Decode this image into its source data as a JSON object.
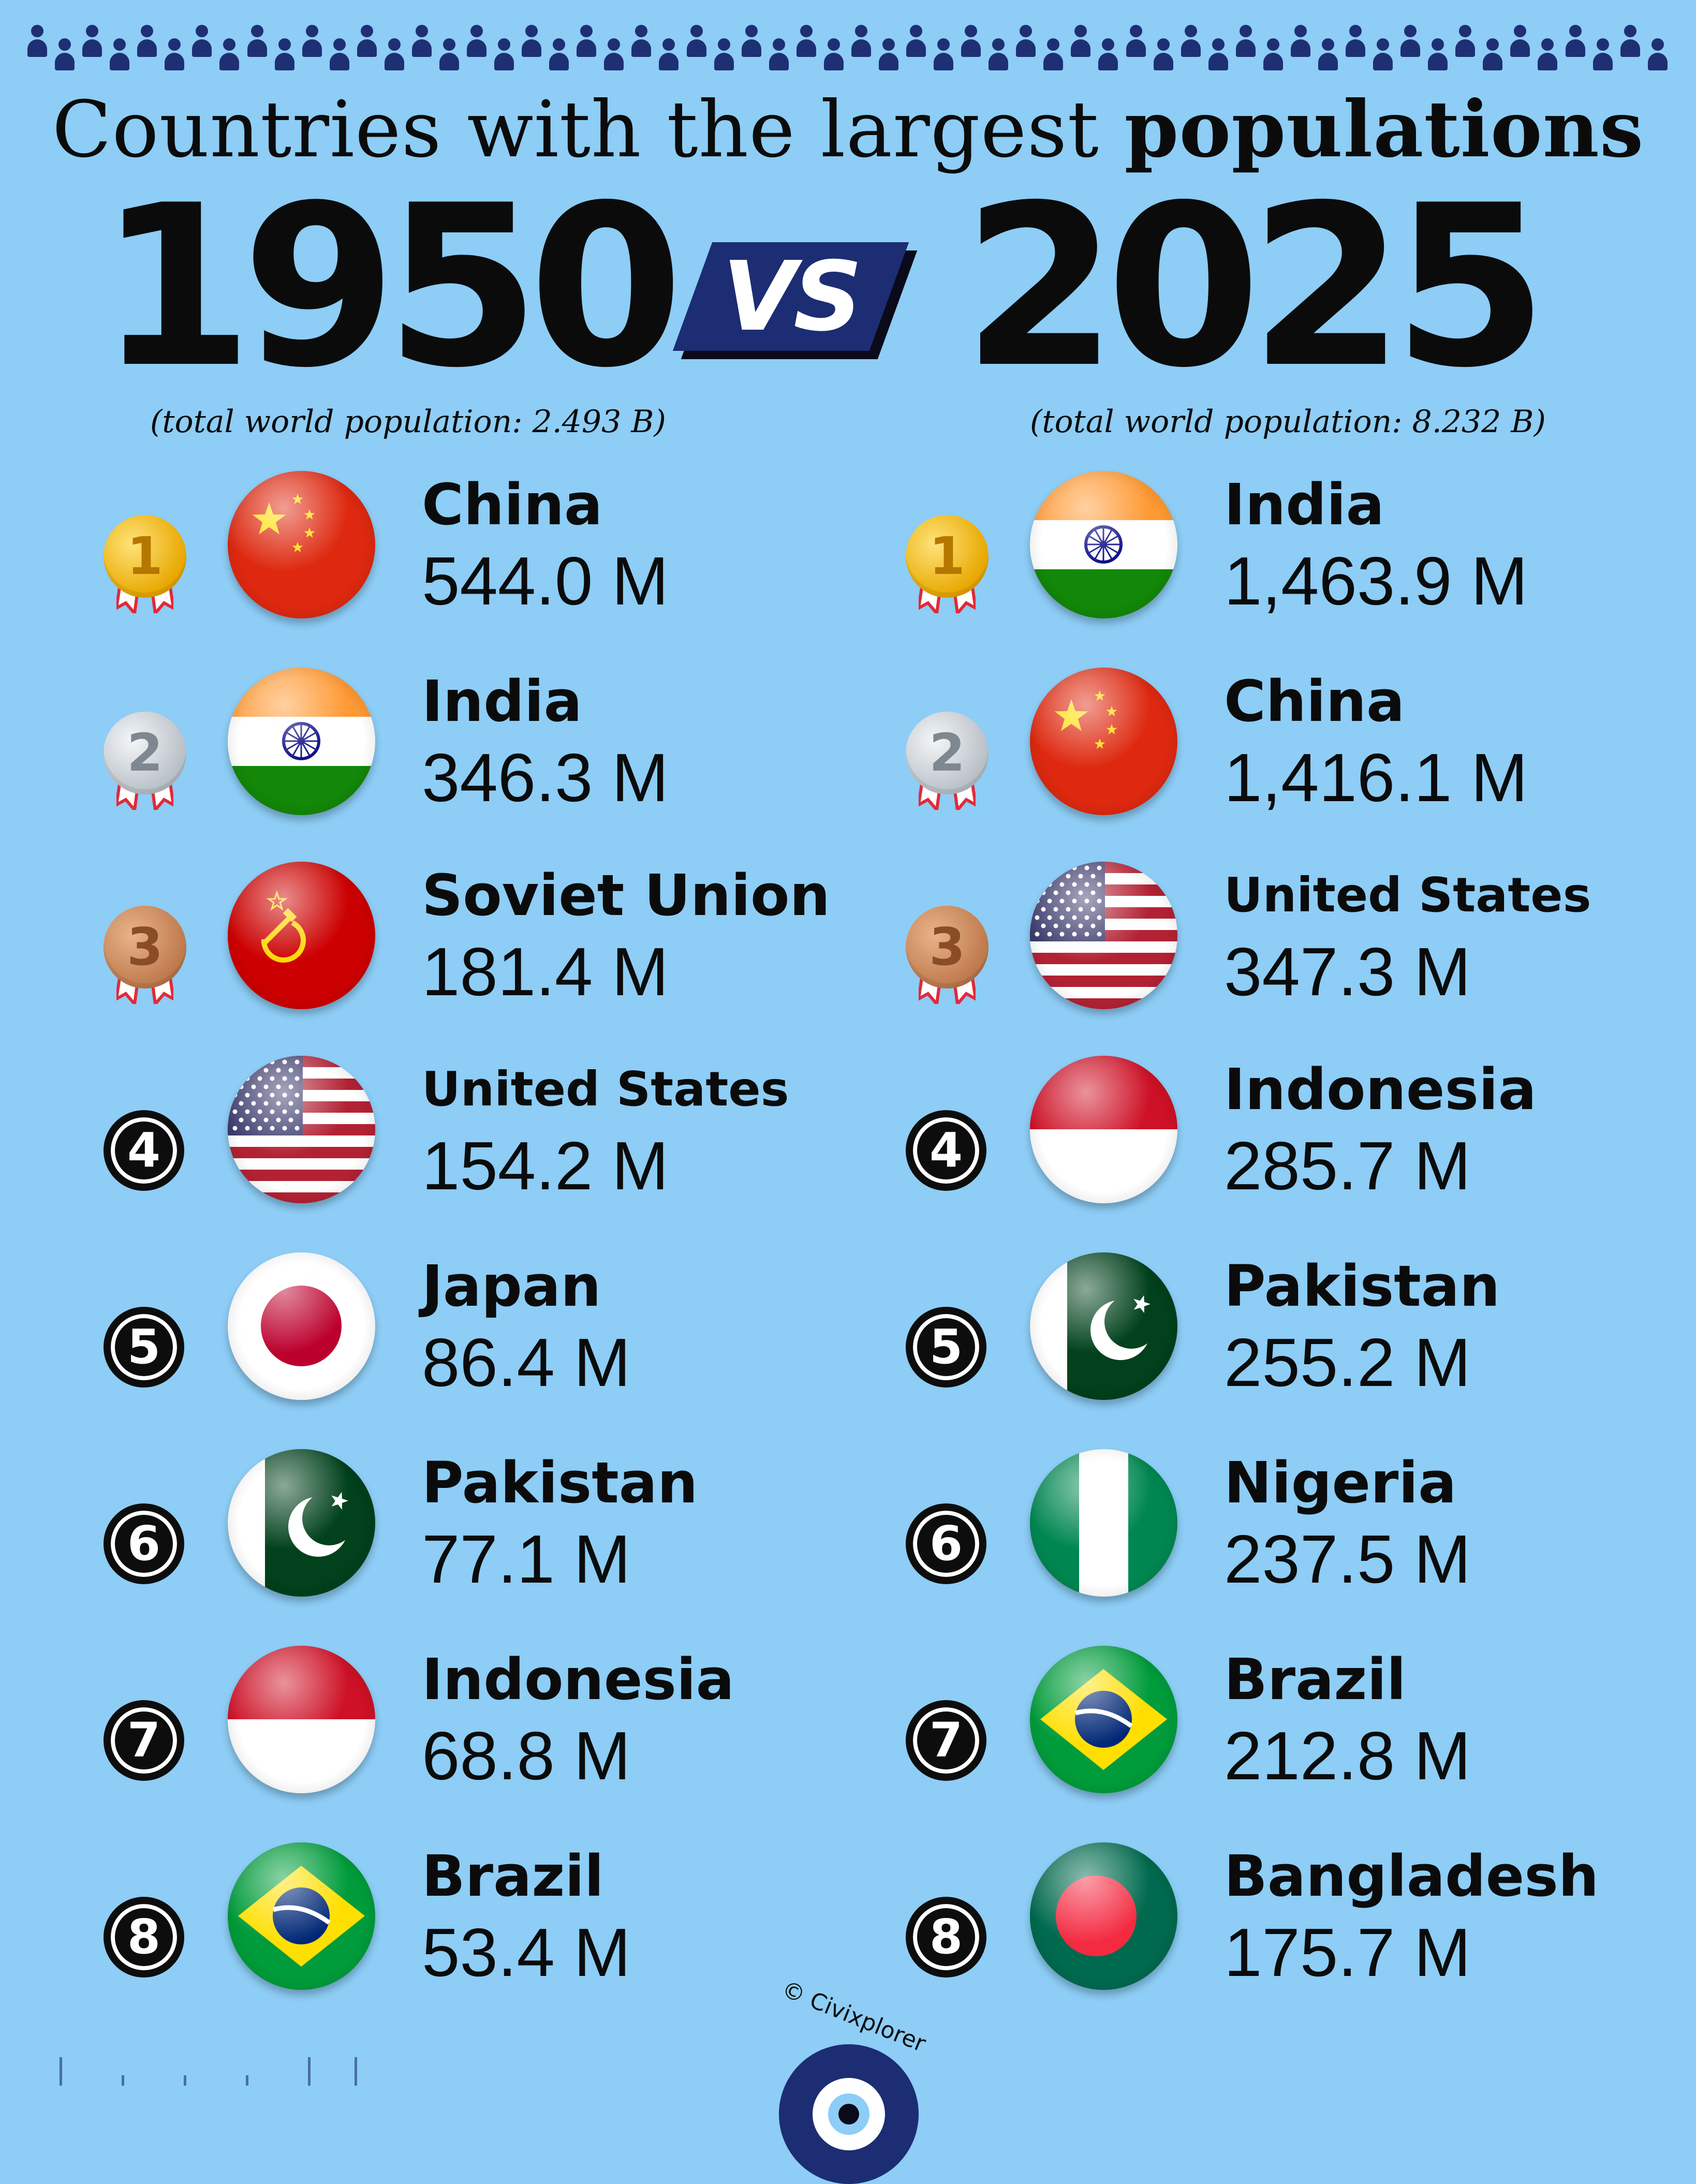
{
  "header": {
    "title_light": "Countries with the largest",
    "title_bold": "populations",
    "year_left": "1950",
    "vs_label": "VS",
    "year_right": "2025",
    "total_left": "(total world population: 2.493 B)",
    "total_right": "(total world population: 8.232 B)"
  },
  "list_1950": [
    {
      "rank": "1",
      "country": "China",
      "value": "544.0 M",
      "flag": "china-flag-icon"
    },
    {
      "rank": "2",
      "country": "India",
      "value": "346.3 M",
      "flag": "india-flag-icon"
    },
    {
      "rank": "3",
      "country": "Soviet Union",
      "value": "181.4 M",
      "flag": "soviet-union-flag-icon"
    },
    {
      "rank": "4",
      "country": "United States",
      "value": "154.2 M",
      "flag": "united-states-flag-icon"
    },
    {
      "rank": "5",
      "country": "Japan",
      "value": "86.4 M",
      "flag": "japan-flag-icon"
    },
    {
      "rank": "6",
      "country": "Pakistan",
      "value": "77.1 M",
      "flag": "pakistan-flag-icon"
    },
    {
      "rank": "7",
      "country": "Indonesia",
      "value": "68.8 M",
      "flag": "indonesia-flag-icon"
    },
    {
      "rank": "8",
      "country": "Brazil",
      "value": "53.4 M",
      "flag": "brazil-flag-icon"
    }
  ],
  "list_2025": [
    {
      "rank": "1",
      "country": "India",
      "value": "1,463.9 M",
      "flag": "india-flag-icon"
    },
    {
      "rank": "2",
      "country": "China",
      "value": "1,416.1 M",
      "flag": "china-flag-icon"
    },
    {
      "rank": "3",
      "country": "United States",
      "value": "347.3 M",
      "flag": "united-states-flag-icon"
    },
    {
      "rank": "4",
      "country": "Indonesia",
      "value": "285.7 M",
      "flag": "indonesia-flag-icon"
    },
    {
      "rank": "5",
      "country": "Pakistan",
      "value": "255.2 M",
      "flag": "pakistan-flag-icon"
    },
    {
      "rank": "6",
      "country": "Nigeria",
      "value": "237.5 M",
      "flag": "nigeria-flag-icon"
    },
    {
      "rank": "7",
      "country": "Brazil",
      "value": "212.8 M",
      "flag": "brazil-flag-icon"
    },
    {
      "rank": "8",
      "country": "Bangladesh",
      "value": "175.7 M",
      "flag": "bangladesh-flag-icon"
    }
  ],
  "footer": {
    "credit": "© Civixplorer",
    "logo_icon": "eye-logo-icon"
  },
  "colors": {
    "background": "#8dcdf6",
    "navy": "#1c2d73",
    "text": "#0b0b0b"
  }
}
